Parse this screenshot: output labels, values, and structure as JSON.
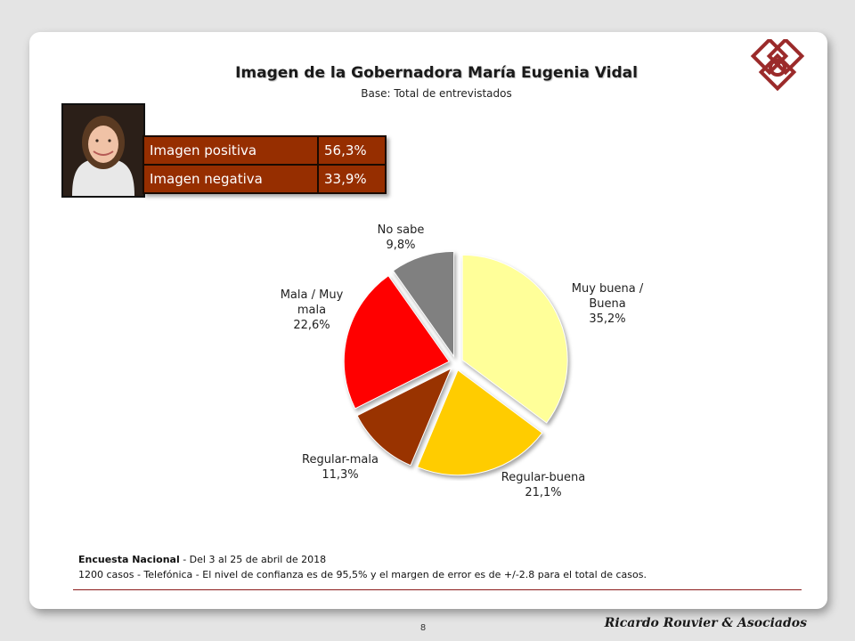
{
  "header": {
    "title": "Imagen de la Gobernadora María Eugenia Vidal",
    "subtitle": "Base: Total de entrevistados"
  },
  "summary": {
    "rows": [
      {
        "label": "Imagen positiva",
        "value": "56,3%"
      },
      {
        "label": "Imagen negativa",
        "value": "33,9%"
      }
    ]
  },
  "chart_data": {
    "type": "pie",
    "slices": [
      {
        "label": "Muy buena / Buena",
        "display": "35,2%",
        "value": 35.2,
        "color": "#ffff99"
      },
      {
        "label": "Regular-buena",
        "display": "21,1%",
        "value": 21.1,
        "color": "#ffcc00"
      },
      {
        "label": "Regular-mala",
        "display": "11,3%",
        "value": 11.3,
        "color": "#993300"
      },
      {
        "label": "Mala / Muy mala",
        "display": "22,6%",
        "value": 22.6,
        "color": "#ff0000"
      },
      {
        "label": "No sabe",
        "display": "9,8%",
        "value": 9.8,
        "color": "#808080"
      }
    ],
    "start_angle_deg": 0,
    "direction": "clockwise"
  },
  "footer": {
    "survey_name": "Encuesta Nacional",
    "survey_dates": " - Del 3 al 25 de abril de 2018",
    "method": "1200 casos - Telefónica  - El nivel de confianza es de 95,5% y el margen de error es de +/-2.8 para el total de casos.",
    "page_number": "8",
    "brand": "Ricardo Rouvier & Asociados"
  }
}
